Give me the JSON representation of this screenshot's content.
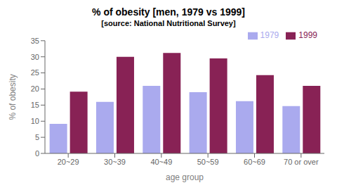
{
  "chart_data": {
    "type": "bar",
    "title": "% of obesity [men, 1979 vs 1999]",
    "subtitle": "[source: National Nutritional Survey]",
    "categories": [
      "20~29",
      "30~39",
      "40~49",
      "50~59",
      "60~69",
      "70 or over"
    ],
    "series": [
      {
        "name": "1979",
        "color": "#aaaaee",
        "values": [
          9.2,
          16.0,
          21.0,
          19.0,
          16.2,
          14.7
        ]
      },
      {
        "name": "1999",
        "color": "#882255",
        "values": [
          19.2,
          30.0,
          31.2,
          29.5,
          24.3,
          21.0
        ]
      }
    ],
    "xlabel": "age group",
    "ylabel": "% of obesity",
    "ylim": [
      0,
      35
    ],
    "yticks": [
      0,
      5,
      10,
      15,
      20,
      25,
      30,
      35
    ],
    "legend": "upper right",
    "grid": false
  }
}
